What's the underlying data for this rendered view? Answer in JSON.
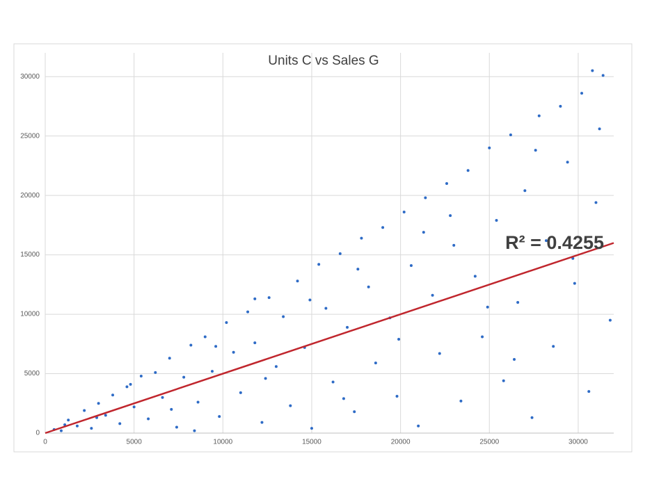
{
  "chart_data": {
    "type": "scatter",
    "title": "Units C vs Sales G",
    "x": [
      500,
      900,
      1300,
      1800,
      2200,
      2600,
      3000,
      3400,
      3800,
      4200,
      4600,
      5000,
      5400,
      5800,
      6200,
      6600,
      7000,
      7400,
      7800,
      8200,
      8600,
      9000,
      9400,
      9800,
      10200,
      10600,
      11000,
      11400,
      11800,
      12200,
      12600,
      13000,
      13400,
      13800,
      14200,
      14600,
      15000,
      15400,
      15800,
      16200,
      16600,
      17000,
      17400,
      17800,
      18200,
      18600,
      19000,
      19400,
      19800,
      20200,
      20600,
      21000,
      21400,
      21800,
      22200,
      22600,
      23000,
      23400,
      23800,
      24200,
      24600,
      25000,
      25400,
      25800,
      26200,
      26600,
      27000,
      27400,
      27800,
      28200,
      28600,
      29000,
      29400,
      29800,
      30200,
      30600,
      31000,
      31400,
      31800,
      1100,
      2900,
      4800,
      7100,
      9600,
      12400,
      14900,
      17600,
      19900,
      22800,
      24900,
      27600,
      29700,
      31200,
      16800,
      21300,
      26400,
      30800,
      11800,
      8400
    ],
    "series": [
      {
        "color": "#2e6bc6",
        "values": [
          300,
          200,
          1100,
          600,
          1900,
          400,
          2500,
          1500,
          3200,
          800,
          3900,
          2200,
          4800,
          1200,
          5100,
          3000,
          6300,
          500,
          4700,
          7400,
          2600,
          8100,
          5200,
          1400,
          9300,
          6800,
          3400,
          10200,
          7600,
          900,
          11400,
          5600,
          9800,
          2300,
          12800,
          7200,
          400,
          14200,
          10500,
          4300,
          15100,
          8900,
          1800,
          16400,
          12300,
          5900,
          17300,
          9700,
          3100,
          18600,
          14100,
          600,
          19800,
          11600,
          6700,
          21000,
          15800,
          2700,
          22100,
          13200,
          8100,
          24000,
          17900,
          4400,
          25100,
          11000,
          20400,
          1300,
          26700,
          16200,
          7300,
          27500,
          22800,
          12600,
          28600,
          3500,
          19400,
          30100,
          9500,
          700,
          1300,
          4100,
          2000,
          7300,
          4600,
          11200,
          13800,
          7900,
          18300,
          10600,
          23800,
          14700,
          25600,
          2900,
          16900,
          6200,
          30500,
          11300,
          200
        ]
      }
    ],
    "trendline": {
      "x": [
        0,
        32000
      ],
      "y": [
        0,
        16000
      ],
      "color": "#c0262d"
    },
    "annotation": "R² = 0.4255",
    "xlim": [
      0,
      32000
    ],
    "ylim": [
      0,
      32000
    ],
    "xticks": [
      0,
      5000,
      10000,
      15000,
      20000,
      25000,
      30000
    ],
    "yticks": [
      0,
      5000,
      10000,
      15000,
      20000,
      25000,
      30000
    ],
    "grid": true
  }
}
